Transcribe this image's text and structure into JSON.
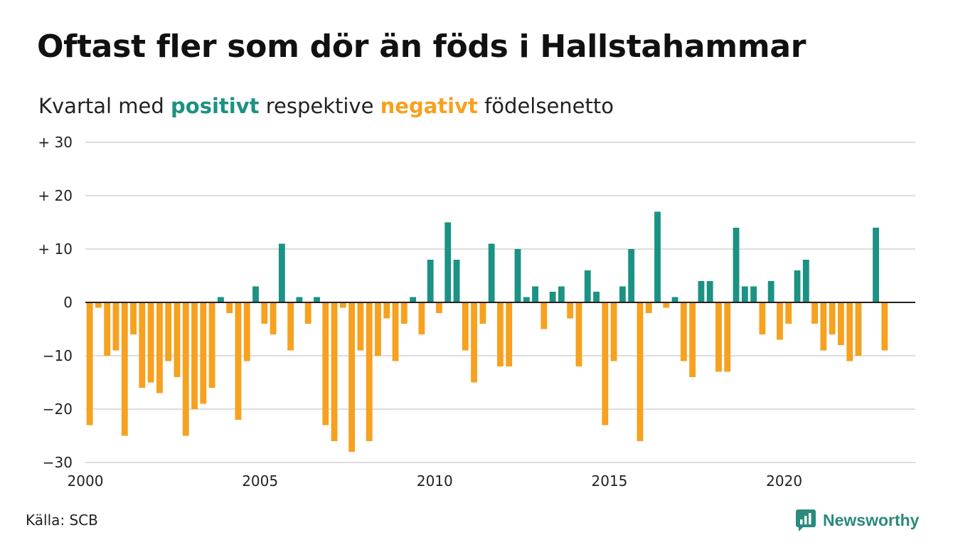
{
  "title": "Oftast fler som dör än föds i Hallstahammar",
  "subtitle": {
    "before": "Kvartal med",
    "positive": "positivt",
    "middle": "respektive",
    "negative": "negativt",
    "after": "födelsenetto"
  },
  "source": "Källa: SCB",
  "brand": "Newsworthy",
  "colors": {
    "positive": "#1b9283",
    "negative": "#f6a11f",
    "grid": "#dddddd",
    "zero_line": "#222222",
    "brand": "#2a8a7c"
  },
  "chart_data": {
    "type": "bar",
    "title": "Oftast fler som dör än föds i Hallstahammar",
    "subtitle": "Kvartal med positivt respektive negativt födelsenetto",
    "xlabel": "",
    "ylabel": "",
    "ylim": [
      -30,
      30
    ],
    "y_ticks": [
      {
        "value": 30,
        "label": "+ 30"
      },
      {
        "value": 20,
        "label": "+ 20"
      },
      {
        "value": 10,
        "label": "+ 10"
      },
      {
        "value": 0,
        "label": "0"
      },
      {
        "value": -10,
        "label": "−10"
      },
      {
        "value": -20,
        "label": "−20"
      },
      {
        "value": -30,
        "label": "−30"
      }
    ],
    "x_ticks": [
      "2000",
      "2005",
      "2010",
      "2015",
      "2020"
    ],
    "x_start": "2000 Q1",
    "x_end": "2022 Q4",
    "grid": true,
    "legend": "none",
    "categories": [
      "2000 Q1",
      "2000 Q2",
      "2000 Q3",
      "2000 Q4",
      "2001 Q1",
      "2001 Q2",
      "2001 Q3",
      "2001 Q4",
      "2002 Q1",
      "2002 Q2",
      "2002 Q3",
      "2002 Q4",
      "2003 Q1",
      "2003 Q2",
      "2003 Q3",
      "2003 Q4",
      "2004 Q1",
      "2004 Q2",
      "2004 Q3",
      "2004 Q4",
      "2005 Q1",
      "2005 Q2",
      "2005 Q3",
      "2005 Q4",
      "2006 Q1",
      "2006 Q2",
      "2006 Q3",
      "2006 Q4",
      "2007 Q1",
      "2007 Q2",
      "2007 Q3",
      "2007 Q4",
      "2008 Q1",
      "2008 Q2",
      "2008 Q3",
      "2008 Q4",
      "2009 Q1",
      "2009 Q2",
      "2009 Q3",
      "2009 Q4",
      "2010 Q1",
      "2010 Q2",
      "2010 Q3",
      "2010 Q4",
      "2011 Q1",
      "2011 Q2",
      "2011 Q3",
      "2011 Q4",
      "2012 Q1",
      "2012 Q2",
      "2012 Q3",
      "2012 Q4",
      "2013 Q1",
      "2013 Q2",
      "2013 Q3",
      "2013 Q4",
      "2014 Q1",
      "2014 Q2",
      "2014 Q3",
      "2014 Q4",
      "2015 Q1",
      "2015 Q2",
      "2015 Q3",
      "2015 Q4",
      "2016 Q1",
      "2016 Q2",
      "2016 Q3",
      "2016 Q4",
      "2017 Q1",
      "2017 Q2",
      "2017 Q3",
      "2017 Q4",
      "2018 Q1",
      "2018 Q2",
      "2018 Q3",
      "2018 Q4",
      "2019 Q1",
      "2019 Q2",
      "2019 Q3",
      "2019 Q4",
      "2020 Q1",
      "2020 Q2",
      "2020 Q3",
      "2020 Q4",
      "2021 Q1",
      "2021 Q2",
      "2021 Q3",
      "2021 Q4",
      "2022 Q1",
      "2022 Q2",
      "2022 Q3",
      "2022 Q4"
    ],
    "values": [
      -23,
      -1,
      -10,
      -9,
      -25,
      -6,
      -16,
      -15,
      -17,
      -11,
      -14,
      -25,
      -20,
      -19,
      -16,
      1,
      -2,
      -22,
      -11,
      3,
      -4,
      -6,
      11,
      -9,
      1,
      -4,
      1,
      -23,
      -26,
      -1,
      -28,
      -9,
      -26,
      -10,
      -3,
      -11,
      -4,
      1,
      -6,
      8,
      -2,
      15,
      8,
      -9,
      -15,
      -4,
      11,
      -12,
      -12,
      10,
      1,
      3,
      -5,
      2,
      3,
      -3,
      -12,
      6,
      2,
      -23,
      -11,
      3,
      10,
      -26,
      -2,
      17,
      -1,
      1,
      -11,
      -14,
      4,
      4,
      -13,
      -13,
      14,
      3,
      3,
      -6,
      4,
      -7,
      -4,
      6,
      8,
      -4,
      -9,
      -6,
      -8,
      -11,
      -10,
      0,
      14,
      -9
    ]
  }
}
